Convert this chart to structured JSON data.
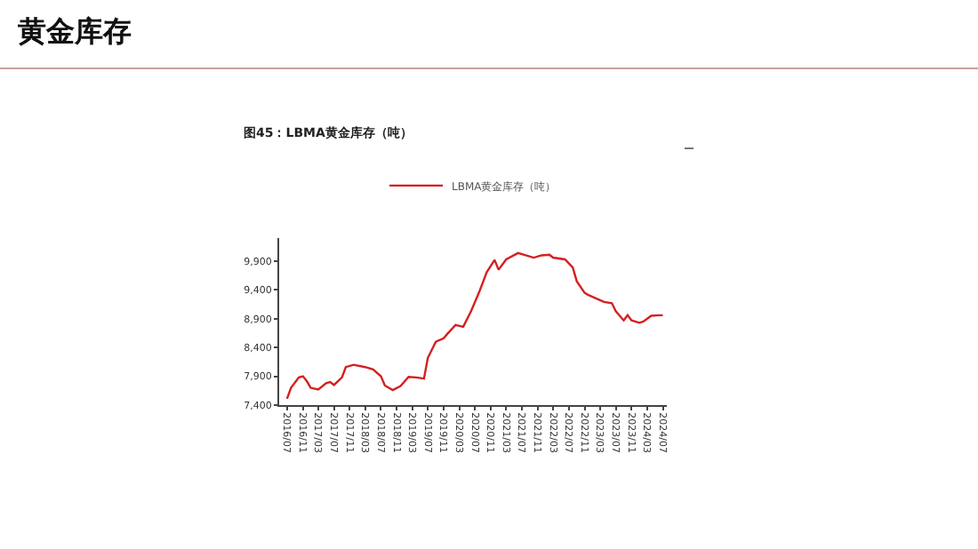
{
  "chart_data": {
    "type": "line",
    "title": "黄金库存",
    "subtitle": "图45：LBMA黄金库存（吨）",
    "x": [
      "2016-07",
      "2016-08",
      "2016-10",
      "2016-11",
      "2016-12",
      "2017-01",
      "2017-03",
      "2017-05",
      "2017-06",
      "2017-07",
      "2017-09",
      "2017-10",
      "2017-12",
      "2018-03",
      "2018-05",
      "2018-07",
      "2018-08",
      "2018-10",
      "2018-12",
      "2019-02",
      "2019-04",
      "2019-06",
      "2019-07",
      "2019-09",
      "2019-11",
      "2019-12",
      "2020-02",
      "2020-04",
      "2020-06",
      "2020-08",
      "2020-10",
      "2020-12",
      "2021-01",
      "2021-03",
      "2021-06",
      "2021-08",
      "2021-10",
      "2021-12",
      "2022-02",
      "2022-03",
      "2022-06",
      "2022-08",
      "2022-09",
      "2022-11",
      "2022-12",
      "2023-02",
      "2023-04",
      "2023-06",
      "2023-07",
      "2023-09",
      "2023-10",
      "2023-11",
      "2024-01",
      "2024-02",
      "2024-04",
      "2024-06",
      "2024-07"
    ],
    "series": [
      {
        "name": "LBMA黄金库存（吨）",
        "color": "#d42020",
        "values": [
          7510,
          7700,
          7880,
          7900,
          7820,
          7700,
          7670,
          7780,
          7800,
          7750,
          7880,
          8060,
          8100,
          8060,
          8020,
          7900,
          7740,
          7660,
          7730,
          7890,
          7880,
          7860,
          8220,
          8500,
          8560,
          8640,
          8790,
          8760,
          9030,
          9350,
          9710,
          9920,
          9750,
          9930,
          10040,
          10000,
          9960,
          10000,
          10010,
          9960,
          9930,
          9790,
          9550,
          9350,
          9310,
          9250,
          9190,
          9170,
          9030,
          8870,
          8960,
          8870,
          8830,
          8850,
          8950,
          8960,
          8960
        ]
      }
    ],
    "xlim": [
      "2016-05",
      "2024-08"
    ],
    "xticks": [
      {
        "value": "2016-07",
        "label": "2016/07"
      },
      {
        "value": "2016-11",
        "label": "2016/11"
      },
      {
        "value": "2017-03",
        "label": "2017/03"
      },
      {
        "value": "2017-07",
        "label": "2017/07"
      },
      {
        "value": "2017-11",
        "label": "2017/11"
      },
      {
        "value": "2018-03",
        "label": "2018/03"
      },
      {
        "value": "2018-07",
        "label": "2018/07"
      },
      {
        "value": "2018-11",
        "label": "2018/11"
      },
      {
        "value": "2019-03",
        "label": "2019/03"
      },
      {
        "value": "2019-07",
        "label": "2019/07"
      },
      {
        "value": "2019-11",
        "label": "2019/11"
      },
      {
        "value": "2020-03",
        "label": "2020/03"
      },
      {
        "value": "2020-07",
        "label": "2020/07"
      },
      {
        "value": "2020-11",
        "label": "2020/11"
      },
      {
        "value": "2021-03",
        "label": "2021/03"
      },
      {
        "value": "2021-07",
        "label": "2021/07"
      },
      {
        "value": "2021-11",
        "label": "2021/11"
      },
      {
        "value": "2022-03",
        "label": "2022/03"
      },
      {
        "value": "2022-07",
        "label": "2022/07"
      },
      {
        "value": "2022-11",
        "label": "2022/11"
      },
      {
        "value": "2023-03",
        "label": "2023/03"
      },
      {
        "value": "2023-07",
        "label": "2023/07"
      },
      {
        "value": "2023-11",
        "label": "2023/11"
      },
      {
        "value": "2024-03",
        "label": "2024/03"
      },
      {
        "value": "2024-07",
        "label": "2024/07"
      }
    ],
    "ylim": [
      7400,
      10300
    ],
    "yticks": [
      {
        "value": 7400,
        "label": "7,400"
      },
      {
        "value": 7900,
        "label": "7,900"
      },
      {
        "value": 8400,
        "label": "8,400"
      },
      {
        "value": 8900,
        "label": "8,900"
      },
      {
        "value": 9400,
        "label": "9,400"
      },
      {
        "value": 9900,
        "label": "9,900"
      }
    ],
    "grid": false,
    "legend": "top",
    "marker": "none",
    "line_style": "solid"
  }
}
